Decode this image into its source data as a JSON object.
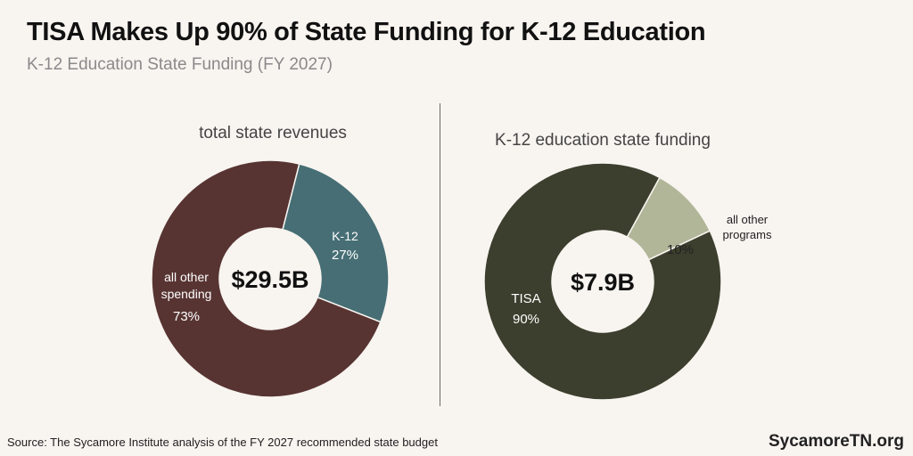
{
  "header": {
    "title": "TISA Makes Up 90% of State Funding for K-12 Education",
    "subtitle": "K-12 Education State Funding (FY 2027)"
  },
  "footer": {
    "source": "Source: The Sycamore Institute analysis of the FY 2027 recommended state budget",
    "brand": "SycamoreTN.org"
  },
  "chart_data": [
    {
      "type": "pie",
      "title": "total state revenues",
      "center_label": "$29.5B",
      "categories": [
        "K-12",
        "all other spending"
      ],
      "values": [
        27,
        73
      ],
      "value_labels": [
        "27%",
        "73%"
      ],
      "colors": [
        "#466e74",
        "#573432"
      ],
      "label_colors": [
        "#ffffff",
        "#ffffff"
      ]
    },
    {
      "type": "pie",
      "title": "K-12 education state funding",
      "center_label": "$7.9B",
      "categories": [
        "all other programs",
        "TISA"
      ],
      "values": [
        10,
        90
      ],
      "value_labels": [
        "10%",
        "90%"
      ],
      "colors": [
        "#b2b699",
        "#3c3f2d"
      ],
      "label_colors": [
        "#222222",
        "#ffffff"
      ]
    }
  ]
}
